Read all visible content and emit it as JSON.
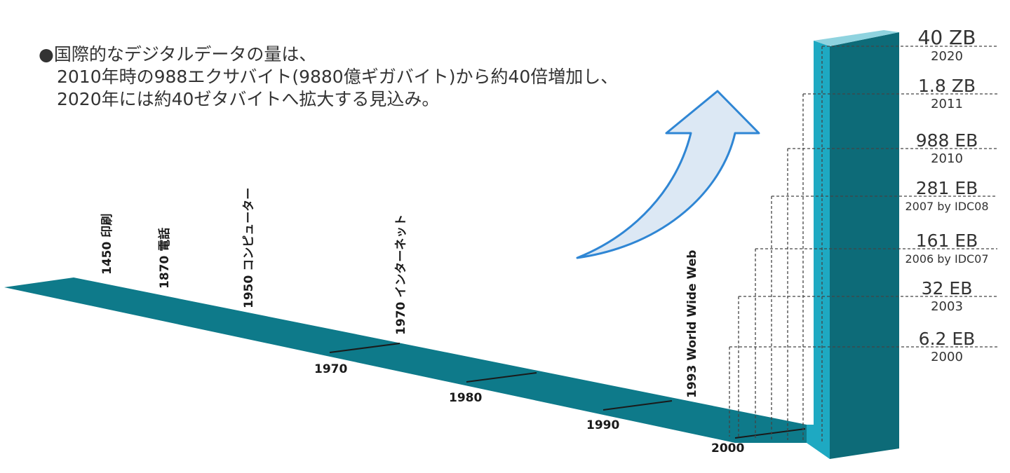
{
  "caption": {
    "line1": "●国際的なデジタルデータの量は、",
    "line2": "2010年時の988エクサバイト(9880億ギガバイト)から約40倍増加し、",
    "line3": "2020年には約40ゼタバイトへ拡大する見込み。"
  },
  "timeline_events": [
    {
      "label": "1450 印刷"
    },
    {
      "label": "1870 電話"
    },
    {
      "label": "1950 コンピューター"
    },
    {
      "label": "1970 インターネット"
    },
    {
      "label": "1993 World Wide Web"
    }
  ],
  "decade_labels": [
    "1970",
    "1980",
    "1990",
    "2000"
  ],
  "data_volumes": [
    {
      "value": "40 ZB",
      "year": "2020"
    },
    {
      "value": "1.8 ZB",
      "year": "2011"
    },
    {
      "value": "988 EB",
      "year": "2010"
    },
    {
      "value": "281 EB",
      "year": "2007 by IDC08"
    },
    {
      "value": "161 EB",
      "year": "2006 by IDC07"
    },
    {
      "value": "32 EB",
      "year": "2003"
    },
    {
      "value": "6.2 EB",
      "year": "2000"
    }
  ],
  "colors": {
    "band": "#0e7a8a",
    "pillar_front": "#1ea9c2",
    "pillar_side": "#0d6b78",
    "pillar_top": "#8fd3df",
    "arrow_fill": "#dce8f4",
    "arrow_stroke": "#2f86d4",
    "text": "#333333"
  }
}
